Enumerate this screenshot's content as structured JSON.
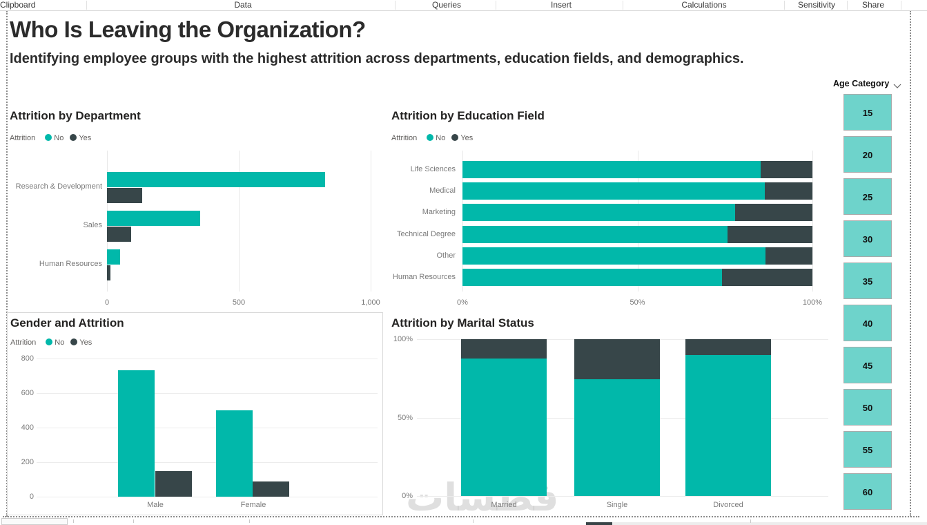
{
  "ribbon": {
    "tabs": [
      "Clipboard",
      "Data",
      "Queries",
      "Insert",
      "Calculations",
      "Sensitivity",
      "Share"
    ]
  },
  "header": {
    "title": "Who Is Leaving the Organization?",
    "subtitle": "Identifying employee groups with the highest attrition across departments, education fields, and demographics."
  },
  "chart_data": [
    {
      "type": "bar",
      "orientation": "horizontal",
      "mode": "grouped",
      "title": "Attrition by Department",
      "legend_title": "Attrition",
      "legend_position": "top",
      "categories": [
        "Research & Development",
        "Sales",
        "Human Resources"
      ],
      "series": [
        {
          "name": "No",
          "color": "#01B8AA",
          "values": [
            828,
            354,
            51
          ]
        },
        {
          "name": "Yes",
          "color": "#374649",
          "values": [
            133,
            92,
            12
          ]
        }
      ],
      "xlim": [
        0,
        1000
      ],
      "xtick_values": [
        0,
        500,
        1000
      ],
      "xtick_labels": [
        "0",
        "500",
        "1,000"
      ],
      "grid": true
    },
    {
      "type": "bar",
      "orientation": "horizontal",
      "mode": "stacked-100%",
      "title": "Attrition by Education Field",
      "legend_title": "Attrition",
      "legend_position": "top",
      "categories": [
        "Life Sciences",
        "Medical",
        "Marketing",
        "Technical Degree",
        "Other",
        "Human Resources"
      ],
      "series": [
        {
          "name": "No",
          "color": "#01B8AA",
          "pct": [
            85.3,
            86.4,
            78.0,
            75.8,
            86.6,
            74.1
          ]
        },
        {
          "name": "Yes",
          "color": "#374649",
          "pct": [
            14.7,
            13.6,
            22.0,
            24.2,
            13.4,
            25.9
          ]
        }
      ],
      "xlim": [
        0,
        100
      ],
      "xtick_values": [
        0,
        50,
        100
      ],
      "xtick_labels": [
        "0%",
        "50%",
        "100%"
      ],
      "grid": true
    },
    {
      "type": "bar",
      "orientation": "vertical",
      "mode": "grouped",
      "title": "Gender and Attrition",
      "legend_title": "Attrition",
      "legend_position": "top",
      "categories": [
        "Male",
        "Female"
      ],
      "series": [
        {
          "name": "No",
          "color": "#01B8AA",
          "values": [
            732,
            501
          ]
        },
        {
          "name": "Yes",
          "color": "#374649",
          "values": [
            150,
            87
          ]
        }
      ],
      "ylim": [
        0,
        800
      ],
      "ytick_values": [
        800,
        600,
        400,
        200,
        0
      ],
      "ytick_labels": [
        "800",
        "600",
        "400",
        "200",
        "0"
      ],
      "grid": true
    },
    {
      "type": "bar",
      "orientation": "vertical",
      "mode": "stacked-100%",
      "title": "Attrition by Marital Status",
      "legend_title": null,
      "categories": [
        "Married",
        "Single",
        "Divorced"
      ],
      "series": [
        {
          "name": "No",
          "color": "#01B8AA",
          "pct": [
            87.5,
            74.5,
            89.9
          ]
        },
        {
          "name": "Yes",
          "color": "#374649",
          "pct": [
            12.5,
            25.5,
            10.1
          ]
        }
      ],
      "ylim": [
        0,
        100
      ],
      "ytick_values": [
        100,
        50,
        0
      ],
      "ytick_labels": [
        "100%",
        "50%",
        "0%"
      ],
      "grid": true
    }
  ],
  "slicer": {
    "title": "Age Category",
    "options": [
      "15",
      "20",
      "25",
      "30",
      "35",
      "40",
      "45",
      "50",
      "55",
      "60"
    ]
  },
  "watermark": {
    "text": "فطسات"
  },
  "colors": {
    "no": "#01B8AA",
    "yes": "#374649",
    "slicer_button": "#6ED3CB"
  }
}
